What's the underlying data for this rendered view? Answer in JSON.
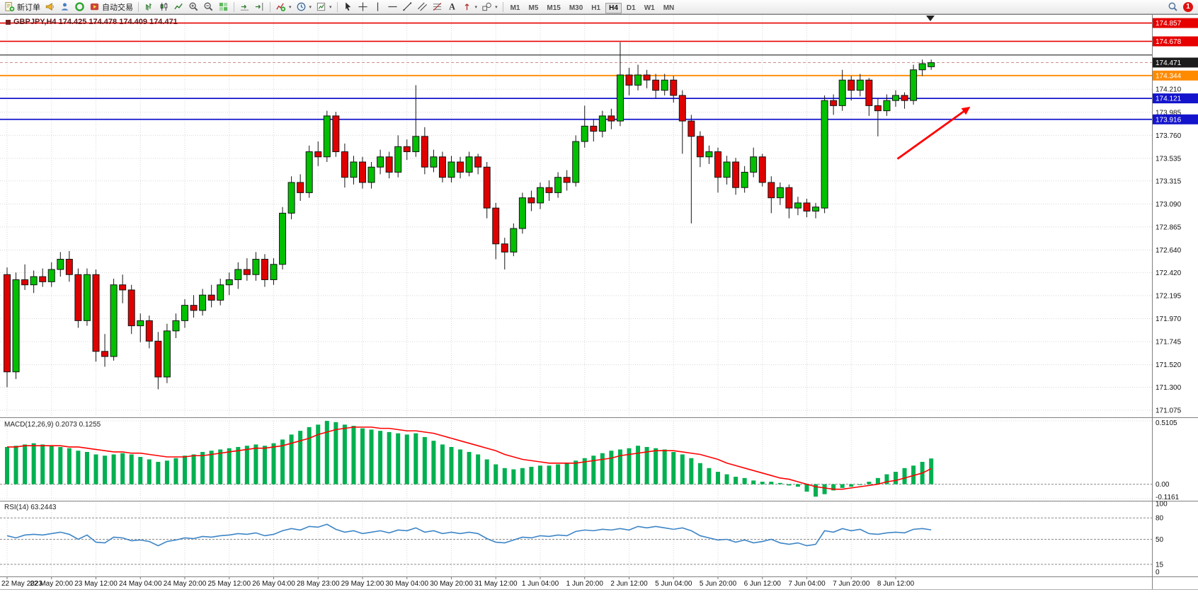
{
  "toolbar": {
    "new_order": "新订单",
    "auto_trading": "自动交易",
    "timeframes": [
      "M1",
      "M5",
      "M15",
      "M30",
      "H1",
      "H4",
      "D1",
      "W1",
      "MN"
    ],
    "active_timeframe": "H4",
    "notification_count": "1",
    "buttons": [
      "new-order",
      "alerts-horn",
      "profile",
      "community",
      "auto-trading",
      "bar-chart",
      "candlestick-chart",
      "line-chart",
      "zoom-in",
      "zoom-out",
      "tile-windows",
      "auto-scroll",
      "chart-shift",
      "indicators",
      "periods",
      "templates",
      "cursor",
      "crosshair",
      "vertical-line",
      "horizontal-line",
      "trendline",
      "channel",
      "fibonacci",
      "text",
      "arrows",
      "shapes",
      "search",
      "notifications"
    ]
  },
  "chart": {
    "title": "GBPJPY,H4 174.425 174.478 174.409 174.471",
    "macd_label": "MACD(12,26,9) 0.2073 0.1255",
    "rsi_label": "RSI(14) 63.2443"
  },
  "chart_data": {
    "type": "candlestick",
    "symbol": "GBPJPY",
    "timeframe": "H4",
    "ohlc": {
      "open": "174.425",
      "high": "174.478",
      "low": "174.409",
      "close": "174.471"
    },
    "current_price": 174.471,
    "y_axis": {
      "max": 174.93,
      "min": 171.02,
      "grid_labels": [
        "174.210",
        "173.985",
        "173.760",
        "173.535",
        "173.315",
        "173.090",
        "172.865",
        "172.640",
        "172.420",
        "172.195",
        "171.970",
        "171.745",
        "171.520",
        "171.300",
        "171.075"
      ]
    },
    "badges": [
      {
        "label": "174.857",
        "price": 174.857,
        "color": "#e60000"
      },
      {
        "label": "174.678",
        "price": 174.678,
        "color": "#e60000"
      },
      {
        "label": "174.471",
        "price": 174.471,
        "color": "#1c1c1c"
      },
      {
        "label": "174.344",
        "price": 174.344,
        "color": "#ff8a00"
      },
      {
        "label": "174.121",
        "price": 174.121,
        "color": "#1414cc"
      },
      {
        "label": "173.916",
        "price": 173.916,
        "color": "#1414cc"
      }
    ],
    "hlines": [
      {
        "price": 174.857,
        "color": "#e60000",
        "w": 1.6
      },
      {
        "price": 174.678,
        "color": "#e60000",
        "w": 1.6
      },
      {
        "price": 174.545,
        "color": "#3c3c3c",
        "w": 1.2
      },
      {
        "price": 174.344,
        "color": "#ff8a00",
        "w": 1.8
      },
      {
        "price": 174.121,
        "color": "#1414cc",
        "w": 1.8
      },
      {
        "price": 173.916,
        "color": "#1414cc",
        "w": 1.8
      }
    ],
    "arrow": {
      "i1": 100.2,
      "p1": 173.53,
      "i2": 108.4,
      "p2": 174.04,
      "color": "#ff0000"
    },
    "colors": {
      "up": "#00c000",
      "down": "#e00000",
      "wick": "#151515",
      "grid": "#d8d8d8",
      "macd_hist": "#00b050",
      "macd_signal": "#ff0000",
      "rsi_line": "#3d85c6",
      "background": "#ffffff"
    },
    "x_labels": [
      {
        "index": 0,
        "label": "22 May 2023"
      },
      {
        "index": 5,
        "label": "22 May 20:00"
      },
      {
        "index": 10,
        "label": "23 May 12:00"
      },
      {
        "index": 15,
        "label": "24 May 04:00"
      },
      {
        "index": 20,
        "label": "24 May 20:00"
      },
      {
        "index": 25,
        "label": "25 May 12:00"
      },
      {
        "index": 30,
        "label": "26 May 04:00"
      },
      {
        "index": 35,
        "label": "28 May 23:00"
      },
      {
        "index": 40,
        "label": "29 May 12:00"
      },
      {
        "index": 45,
        "label": "30 May 04:00"
      },
      {
        "index": 50,
        "label": "30 May 20:00"
      },
      {
        "index": 55,
        "label": "31 May 12:00"
      },
      {
        "index": 60,
        "label": "1 Jun 04:00"
      },
      {
        "index": 65,
        "label": "1 Jun 20:00"
      },
      {
        "index": 70,
        "label": "2 Jun 12:00"
      },
      {
        "index": 75,
        "label": "5 Jun 04:00"
      },
      {
        "index": 80,
        "label": "5 Jun 20:00"
      },
      {
        "index": 85,
        "label": "6 Jun 12:00"
      },
      {
        "index": 90,
        "label": "7 Jun 04:00"
      },
      {
        "index": 95,
        "label": "7 Jun 20:00"
      },
      {
        "index": 100,
        "label": "8 Jun 12:00"
      }
    ],
    "candles": [
      [
        172.4,
        172.47,
        171.3,
        171.45
      ],
      [
        171.45,
        172.42,
        171.38,
        172.35
      ],
      [
        172.35,
        172.5,
        172.25,
        172.3
      ],
      [
        172.3,
        172.44,
        172.22,
        172.38
      ],
      [
        172.38,
        172.46,
        172.28,
        172.33
      ],
      [
        172.33,
        172.52,
        172.28,
        172.45
      ],
      [
        172.45,
        172.62,
        172.38,
        172.55
      ],
      [
        172.55,
        172.63,
        172.33,
        172.4
      ],
      [
        172.4,
        172.46,
        171.88,
        171.95
      ],
      [
        171.95,
        172.46,
        171.9,
        172.4
      ],
      [
        172.4,
        172.45,
        171.55,
        171.65
      ],
      [
        171.65,
        171.82,
        171.5,
        171.6
      ],
      [
        171.6,
        172.36,
        171.56,
        172.3
      ],
      [
        172.3,
        172.4,
        172.12,
        172.25
      ],
      [
        172.25,
        172.3,
        171.82,
        171.9
      ],
      [
        171.9,
        172.02,
        171.74,
        171.95
      ],
      [
        171.95,
        172.0,
        171.68,
        171.75
      ],
      [
        171.75,
        171.84,
        171.28,
        171.4
      ],
      [
        171.4,
        171.92,
        171.34,
        171.85
      ],
      [
        171.85,
        172.02,
        171.78,
        171.95
      ],
      [
        171.95,
        172.16,
        171.88,
        172.1
      ],
      [
        172.1,
        172.2,
        171.98,
        172.05
      ],
      [
        172.05,
        172.26,
        172.0,
        172.2
      ],
      [
        172.2,
        172.3,
        172.08,
        172.15
      ],
      [
        172.15,
        172.36,
        172.1,
        172.3
      ],
      [
        172.3,
        172.42,
        172.2,
        172.35
      ],
      [
        172.35,
        172.52,
        172.26,
        172.45
      ],
      [
        172.45,
        172.56,
        172.34,
        172.4
      ],
      [
        172.4,
        172.62,
        172.34,
        172.55
      ],
      [
        172.55,
        172.6,
        172.28,
        172.35
      ],
      [
        172.35,
        172.56,
        172.3,
        172.5
      ],
      [
        172.5,
        173.06,
        172.45,
        173.0
      ],
      [
        173.0,
        173.36,
        172.94,
        173.3
      ],
      [
        173.3,
        173.38,
        173.12,
        173.2
      ],
      [
        173.2,
        173.66,
        173.15,
        173.6
      ],
      [
        173.6,
        173.7,
        173.46,
        173.55
      ],
      [
        173.55,
        174.0,
        173.5,
        173.95
      ],
      [
        173.95,
        173.99,
        173.55,
        173.6
      ],
      [
        173.6,
        173.68,
        173.25,
        173.35
      ],
      [
        173.35,
        173.56,
        173.28,
        173.5
      ],
      [
        173.5,
        173.55,
        173.24,
        173.3
      ],
      [
        173.3,
        173.5,
        173.24,
        173.45
      ],
      [
        173.45,
        173.62,
        173.38,
        173.55
      ],
      [
        173.55,
        173.6,
        173.34,
        173.4
      ],
      [
        173.4,
        173.76,
        173.35,
        173.65
      ],
      [
        173.65,
        173.72,
        173.52,
        173.6
      ],
      [
        173.6,
        174.25,
        173.55,
        173.75
      ],
      [
        173.75,
        173.84,
        173.38,
        173.45
      ],
      [
        173.45,
        173.62,
        173.4,
        173.55
      ],
      [
        173.55,
        173.6,
        173.3,
        173.35
      ],
      [
        173.35,
        173.56,
        173.3,
        173.5
      ],
      [
        173.5,
        173.55,
        173.34,
        173.4
      ],
      [
        173.4,
        173.6,
        173.36,
        173.55
      ],
      [
        173.55,
        173.58,
        173.38,
        173.45
      ],
      [
        173.45,
        173.5,
        172.95,
        173.05
      ],
      [
        173.05,
        173.1,
        172.55,
        172.7
      ],
      [
        172.7,
        172.76,
        172.45,
        172.62
      ],
      [
        172.62,
        172.9,
        172.58,
        172.85
      ],
      [
        172.85,
        173.2,
        172.8,
        173.15
      ],
      [
        173.15,
        173.22,
        173.02,
        173.1
      ],
      [
        173.1,
        173.3,
        173.04,
        173.25
      ],
      [
        173.25,
        173.32,
        173.12,
        173.2
      ],
      [
        173.2,
        173.4,
        173.15,
        173.35
      ],
      [
        173.35,
        173.42,
        173.22,
        173.3
      ],
      [
        173.3,
        173.76,
        173.26,
        173.7
      ],
      [
        173.7,
        174.05,
        173.64,
        173.85
      ],
      [
        173.85,
        173.92,
        173.7,
        173.8
      ],
      [
        173.8,
        174.0,
        173.74,
        173.95
      ],
      [
        173.95,
        174.02,
        173.82,
        173.9
      ],
      [
        173.9,
        174.67,
        173.85,
        174.35
      ],
      [
        174.35,
        174.42,
        174.15,
        174.25
      ],
      [
        174.25,
        174.45,
        174.2,
        174.35
      ],
      [
        174.35,
        174.4,
        174.22,
        174.3
      ],
      [
        174.3,
        174.36,
        174.12,
        174.2
      ],
      [
        174.2,
        174.36,
        174.15,
        174.3
      ],
      [
        174.3,
        174.34,
        174.08,
        174.15
      ],
      [
        174.15,
        174.2,
        173.58,
        173.9
      ],
      [
        173.9,
        173.96,
        172.9,
        173.75
      ],
      [
        173.75,
        173.8,
        173.45,
        173.55
      ],
      [
        173.55,
        173.66,
        173.48,
        173.6
      ],
      [
        173.6,
        173.64,
        173.2,
        173.35
      ],
      [
        173.35,
        173.56,
        173.28,
        173.5
      ],
      [
        173.5,
        173.54,
        173.18,
        173.25
      ],
      [
        173.25,
        173.46,
        173.2,
        173.4
      ],
      [
        173.4,
        173.64,
        173.35,
        173.55
      ],
      [
        173.55,
        173.58,
        173.26,
        173.3
      ],
      [
        173.3,
        173.36,
        173.0,
        173.15
      ],
      [
        173.15,
        173.3,
        173.08,
        173.25
      ],
      [
        173.25,
        173.28,
        172.95,
        173.05
      ],
      [
        173.05,
        173.16,
        172.98,
        173.1
      ],
      [
        173.1,
        173.14,
        172.96,
        173.02
      ],
      [
        173.02,
        173.1,
        172.95,
        173.06
      ],
      [
        173.05,
        174.15,
        173.0,
        174.1
      ],
      [
        174.1,
        174.16,
        173.96,
        174.05
      ],
      [
        174.05,
        174.4,
        174.0,
        174.3
      ],
      [
        174.3,
        174.34,
        174.1,
        174.2
      ],
      [
        174.2,
        174.36,
        174.14,
        174.3
      ],
      [
        174.3,
        174.32,
        173.95,
        174.05
      ],
      [
        174.05,
        174.12,
        173.75,
        174.0
      ],
      [
        174.0,
        174.16,
        173.95,
        174.1
      ],
      [
        174.1,
        174.2,
        174.04,
        174.15
      ],
      [
        174.15,
        174.18,
        174.02,
        174.1
      ],
      [
        174.1,
        174.45,
        174.06,
        174.4
      ],
      [
        174.4,
        174.5,
        174.34,
        174.46
      ],
      [
        174.43,
        174.5,
        174.4,
        174.47
      ]
    ],
    "macd": {
      "label": "MACD(12,26,9) 0.2073 0.1255",
      "max": 0.5105,
      "min": -0.1161,
      "axis_labels": [
        "0.5105",
        "0.00",
        "-0.1161"
      ],
      "hist": [
        0.3,
        0.31,
        0.32,
        0.33,
        0.32,
        0.31,
        0.3,
        0.29,
        0.27,
        0.26,
        0.24,
        0.23,
        0.24,
        0.25,
        0.24,
        0.22,
        0.2,
        0.18,
        0.19,
        0.21,
        0.23,
        0.24,
        0.26,
        0.27,
        0.28,
        0.29,
        0.3,
        0.31,
        0.32,
        0.31,
        0.33,
        0.36,
        0.4,
        0.43,
        0.46,
        0.48,
        0.51,
        0.5,
        0.48,
        0.47,
        0.45,
        0.44,
        0.43,
        0.42,
        0.41,
        0.4,
        0.41,
        0.38,
        0.35,
        0.32,
        0.3,
        0.28,
        0.26,
        0.24,
        0.2,
        0.16,
        0.13,
        0.12,
        0.13,
        0.14,
        0.15,
        0.15,
        0.16,
        0.17,
        0.19,
        0.21,
        0.23,
        0.25,
        0.27,
        0.28,
        0.29,
        0.31,
        0.3,
        0.29,
        0.28,
        0.26,
        0.24,
        0.21,
        0.17,
        0.13,
        0.1,
        0.08,
        0.06,
        0.05,
        0.03,
        0.02,
        0.02,
        0.01,
        -0.01,
        -0.02,
        -0.06,
        -0.1,
        -0.08,
        -0.05,
        -0.03,
        -0.02,
        0.0,
        0.02,
        0.05,
        0.08,
        0.1,
        0.13,
        0.15,
        0.18,
        0.2073
      ],
      "signal": [
        0.3,
        0.3,
        0.31,
        0.31,
        0.31,
        0.31,
        0.31,
        0.3,
        0.3,
        0.29,
        0.28,
        0.27,
        0.26,
        0.26,
        0.25,
        0.25,
        0.24,
        0.23,
        0.22,
        0.22,
        0.22,
        0.23,
        0.23,
        0.24,
        0.25,
        0.26,
        0.27,
        0.28,
        0.29,
        0.29,
        0.3,
        0.31,
        0.33,
        0.35,
        0.37,
        0.4,
        0.42,
        0.44,
        0.45,
        0.46,
        0.46,
        0.46,
        0.45,
        0.45,
        0.44,
        0.43,
        0.43,
        0.42,
        0.41,
        0.39,
        0.37,
        0.35,
        0.33,
        0.31,
        0.29,
        0.27,
        0.24,
        0.22,
        0.2,
        0.19,
        0.18,
        0.17,
        0.17,
        0.17,
        0.17,
        0.18,
        0.19,
        0.2,
        0.21,
        0.23,
        0.24,
        0.25,
        0.26,
        0.27,
        0.27,
        0.27,
        0.26,
        0.25,
        0.24,
        0.22,
        0.2,
        0.17,
        0.15,
        0.13,
        0.11,
        0.09,
        0.07,
        0.05,
        0.04,
        0.02,
        0.0,
        -0.02,
        -0.03,
        -0.04,
        -0.04,
        -0.03,
        -0.02,
        -0.01,
        0.0,
        0.02,
        0.03,
        0.05,
        0.07,
        0.09,
        0.1255
      ]
    },
    "rsi": {
      "label": "RSI(14) 63.2443",
      "levels": [
        80,
        50,
        15
      ],
      "axis_labels": [
        "100",
        "80",
        "50",
        "15",
        "0"
      ],
      "values": [
        55,
        52,
        56,
        57,
        56,
        58,
        60,
        57,
        50,
        56,
        46,
        45,
        53,
        52,
        48,
        49,
        47,
        41,
        47,
        49,
        52,
        51,
        54,
        53,
        55,
        56,
        58,
        57,
        59,
        55,
        57,
        62,
        65,
        63,
        68,
        67,
        71,
        64,
        60,
        62,
        58,
        60,
        62,
        59,
        63,
        62,
        66,
        60,
        62,
        58,
        60,
        58,
        60,
        58,
        51,
        46,
        45,
        49,
        53,
        52,
        55,
        54,
        56,
        55,
        61,
        63,
        62,
        64,
        63,
        65,
        63,
        68,
        66,
        68,
        66,
        64,
        66,
        62,
        55,
        52,
        49,
        50,
        46,
        49,
        45,
        47,
        50,
        45,
        43,
        45,
        41,
        43,
        62,
        60,
        65,
        62,
        64,
        58,
        57,
        59,
        60,
        59,
        64,
        65,
        63.24
      ]
    }
  }
}
